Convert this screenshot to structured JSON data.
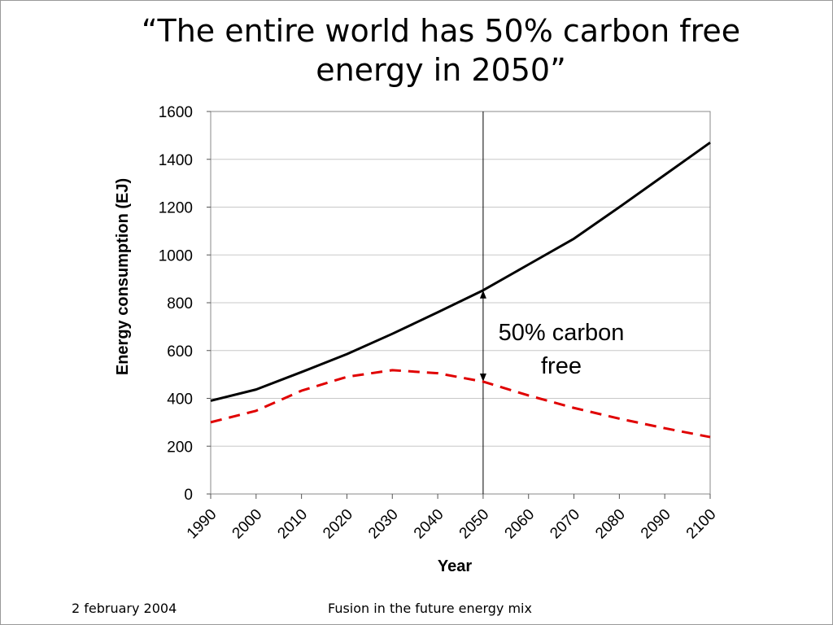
{
  "slide": {
    "title_line1": "“The entire world has 50% carbon free",
    "title_line2": "energy in 2050”",
    "footer_date": "2 february 2004",
    "footer_title": "Fusion in the future energy mix"
  },
  "chart_data": {
    "type": "line",
    "title": "",
    "xlabel": "Year",
    "ylabel": "Energy consumption (EJ)",
    "ylim": [
      0,
      1600
    ],
    "xlim": [
      1990,
      2100
    ],
    "yticks": [
      0,
      200,
      400,
      600,
      800,
      1000,
      1200,
      1400,
      1600
    ],
    "xticks": [
      1990,
      2000,
      2010,
      2020,
      2030,
      2040,
      2050,
      2060,
      2070,
      2080,
      2090,
      2100
    ],
    "grid": "horizontal",
    "series": [
      {
        "color": "#000000",
        "style": "solid",
        "x": [
          1990,
          2000,
          2010,
          2020,
          2030,
          2040,
          2050,
          2060,
          2070,
          2080,
          2090,
          2100
        ],
        "values": [
          390,
          437,
          510,
          585,
          670,
          760,
          852,
          960,
          1068,
          1200,
          1335,
          1470
        ]
      },
      {
        "color": "#e00000",
        "style": "dashed",
        "x": [
          1990,
          2000,
          2010,
          2020,
          2030,
          2040,
          2050,
          2060,
          2070,
          2080,
          2090,
          2100
        ],
        "values": [
          300,
          348,
          432,
          490,
          518,
          505,
          470,
          412,
          360,
          315,
          275,
          238
        ]
      }
    ],
    "marker": {
      "x": 2050,
      "arrow_from": 852,
      "arrow_to": 470
    },
    "annotation": {
      "line1": "50% carbon",
      "line2": "free"
    }
  }
}
